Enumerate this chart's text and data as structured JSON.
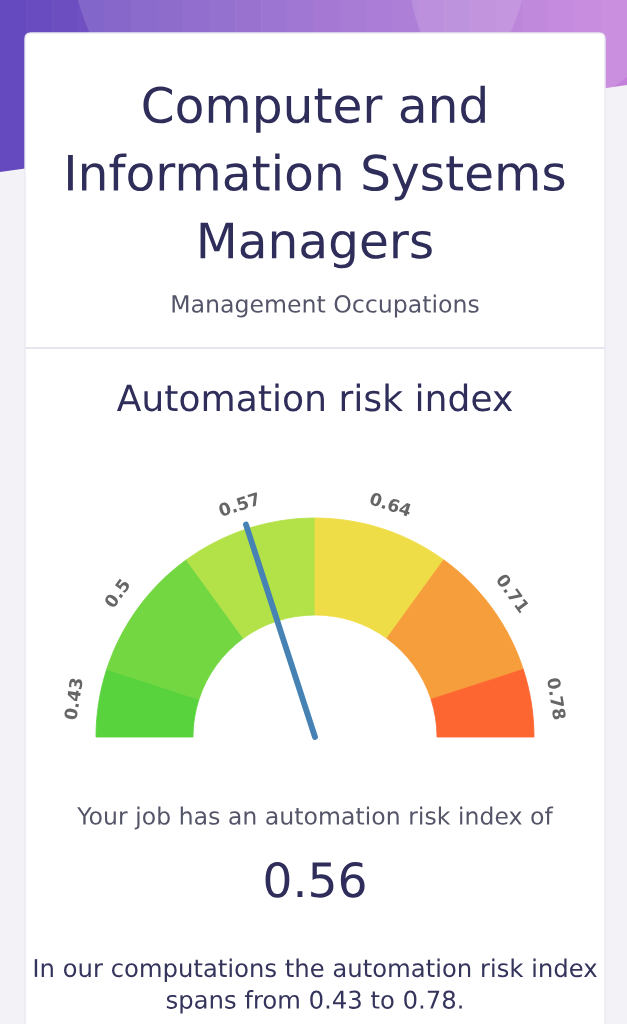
{
  "chart_data": {
    "type": "donut",
    "title": "Computer and Information Systems Managers",
    "subtitle": "Management Occupations",
    "categories": [
      "0.43",
      "0.5",
      "0.57",
      "0.64",
      "0.71",
      "0.78"
    ],
    "values": [
      10,
      20,
      20,
      20,
      20,
      10
    ],
    "colors": [
      "#58d23d",
      "#72d741",
      "#b3e148",
      "#efdd48",
      "#f69e3b",
      "#fd6630"
    ],
    "needle": "0.57",
    "annotations": [
      "Automation risk index",
      "Your job has an automation risk index of",
      "0.56",
      "In our computations the automation risk index spans from 0.43 to 0.78."
    ]
  }
}
